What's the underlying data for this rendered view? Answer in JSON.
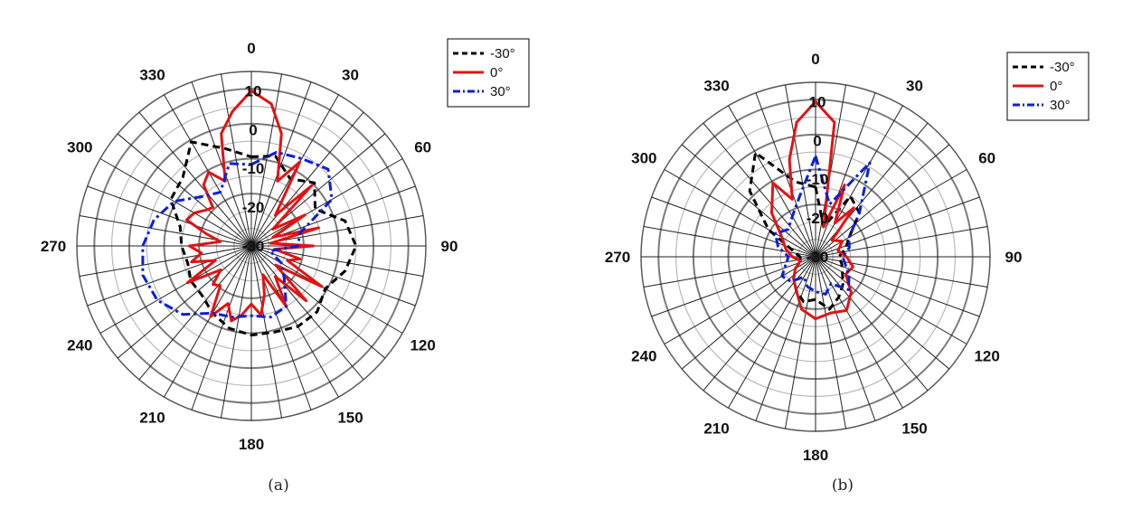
{
  "chart_data": [
    {
      "type": "polar-line",
      "panel_label": "(a)",
      "angle_tick_labels": [
        "0",
        "30",
        "60",
        "90",
        "120",
        "150",
        "180",
        "210",
        "240",
        "270",
        "300",
        "330"
      ],
      "radial_tick_labels": [
        "10",
        "0",
        "-10",
        "-20",
        "-30"
      ],
      "radial_range": [
        -30,
        15
      ],
      "angle_direction": "clockwise",
      "zero_location": "top",
      "legend_placement": "top-right",
      "series": [
        {
          "name": "-30°",
          "color": "#000000",
          "dash": "dashed",
          "points": [
            [
              0,
              -7
            ],
            [
              15,
              -6
            ],
            [
              30,
              -10
            ],
            [
              45,
              -7
            ],
            [
              60,
              -11
            ],
            [
              75,
              -5
            ],
            [
              90,
              -3
            ],
            [
              105,
              -5
            ],
            [
              120,
              -8
            ],
            [
              135,
              -6
            ],
            [
              150,
              -6
            ],
            [
              165,
              -7
            ],
            [
              180,
              -7
            ],
            [
              195,
              -8
            ],
            [
              210,
              -10
            ],
            [
              225,
              -12
            ],
            [
              240,
              -12
            ],
            [
              255,
              -13
            ],
            [
              270,
              -12
            ],
            [
              285,
              -11
            ],
            [
              300,
              -6
            ],
            [
              315,
              -5
            ],
            [
              330,
              1
            ],
            [
              345,
              -4
            ],
            [
              360,
              -7
            ]
          ]
        },
        {
          "name": "0°",
          "color": "#e01414",
          "dash": "solid",
          "points": [
            [
              0,
              10
            ],
            [
              8,
              7
            ],
            [
              15,
              0
            ],
            [
              22,
              -12
            ],
            [
              30,
              -5
            ],
            [
              38,
              -20
            ],
            [
              45,
              -8
            ],
            [
              52,
              -23
            ],
            [
              60,
              -14
            ],
            [
              68,
              -24
            ],
            [
              75,
              -12
            ],
            [
              82,
              -25
            ],
            [
              90,
              -14
            ],
            [
              98,
              -24
            ],
            [
              105,
              -17
            ],
            [
              112,
              -20
            ],
            [
              120,
              -9
            ],
            [
              128,
              -22
            ],
            [
              135,
              -10
            ],
            [
              142,
              -20
            ],
            [
              150,
              -12
            ],
            [
              158,
              -22
            ],
            [
              165,
              -17
            ],
            [
              172,
              -12
            ],
            [
              180,
              -15
            ],
            [
              188,
              -12
            ],
            [
              195,
              -10
            ],
            [
              202,
              -14
            ],
            [
              210,
              -9
            ],
            [
              218,
              -17
            ],
            [
              225,
              -16
            ],
            [
              232,
              -20
            ],
            [
              240,
              -11
            ],
            [
              248,
              -20
            ],
            [
              255,
              -14
            ],
            [
              262,
              -17
            ],
            [
              270,
              -14
            ],
            [
              278,
              -22
            ],
            [
              285,
              -18
            ],
            [
              292,
              -12
            ],
            [
              300,
              -13
            ],
            [
              308,
              -15
            ],
            [
              315,
              -16
            ],
            [
              322,
              -10
            ],
            [
              330,
              -8
            ],
            [
              338,
              -12
            ],
            [
              345,
              0
            ],
            [
              352,
              5
            ],
            [
              360,
              10
            ]
          ]
        },
        {
          "name": "30°",
          "color": "#0b1fd6",
          "dash": "dashdot",
          "points": [
            [
              0,
              -9
            ],
            [
              15,
              -5
            ],
            [
              30,
              -4
            ],
            [
              45,
              -2
            ],
            [
              60,
              -6
            ],
            [
              75,
              -17
            ],
            [
              90,
              -18
            ],
            [
              105,
              -25
            ],
            [
              120,
              -21
            ],
            [
              135,
              -18
            ],
            [
              150,
              -12
            ],
            [
              165,
              -11
            ],
            [
              180,
              -12
            ],
            [
              195,
              -11
            ],
            [
              210,
              -10
            ],
            [
              225,
              -5
            ],
            [
              240,
              -2
            ],
            [
              255,
              -1
            ],
            [
              270,
              -2
            ],
            [
              285,
              -4
            ],
            [
              300,
              -7
            ],
            [
              315,
              -12
            ],
            [
              330,
              -14
            ],
            [
              345,
              -8
            ],
            [
              360,
              -9
            ]
          ]
        }
      ]
    },
    {
      "type": "polar-line",
      "panel_label": "(b)",
      "angle_tick_labels": [
        "0",
        "30",
        "60",
        "90",
        "120",
        "150",
        "180",
        "210",
        "240",
        "270",
        "300",
        "330"
      ],
      "radial_tick_labels": [
        "10",
        "0",
        "-10",
        "-20",
        "-30"
      ],
      "radial_range": [
        -30,
        15
      ],
      "angle_direction": "clockwise",
      "zero_location": "top",
      "legend_placement": "top-right",
      "series": [
        {
          "name": "-30°",
          "color": "#000000",
          "dash": "dashed",
          "points": [
            [
              0,
              -12
            ],
            [
              15,
              -22
            ],
            [
              30,
              -12
            ],
            [
              45,
              -14
            ],
            [
              60,
              -20
            ],
            [
              75,
              -22
            ],
            [
              90,
              -24
            ],
            [
              105,
              -23
            ],
            [
              120,
              -22
            ],
            [
              135,
              -20
            ],
            [
              150,
              -18
            ],
            [
              165,
              -16
            ],
            [
              180,
              -19
            ],
            [
              195,
              -18
            ],
            [
              210,
              -20
            ],
            [
              225,
              -22
            ],
            [
              240,
              -24
            ],
            [
              255,
              -26
            ],
            [
              270,
              -26
            ],
            [
              285,
              -24
            ],
            [
              300,
              -16
            ],
            [
              315,
              -6
            ],
            [
              330,
              1
            ],
            [
              345,
              -10
            ],
            [
              360,
              -12
            ]
          ]
        },
        {
          "name": "0°",
          "color": "#e01414",
          "dash": "solid",
          "points": [
            [
              0,
              10
            ],
            [
              8,
              5
            ],
            [
              15,
              -22
            ],
            [
              22,
              -10
            ],
            [
              30,
              -20
            ],
            [
              38,
              -14
            ],
            [
              45,
              -24
            ],
            [
              60,
              -22
            ],
            [
              75,
              -24
            ],
            [
              90,
              -22
            ],
            [
              105,
              -20
            ],
            [
              120,
              -21
            ],
            [
              135,
              -17
            ],
            [
              150,
              -14
            ],
            [
              165,
              -15
            ],
            [
              180,
              -14
            ],
            [
              195,
              -16
            ],
            [
              210,
              -20
            ],
            [
              225,
              -22
            ],
            [
              240,
              -24
            ],
            [
              255,
              -26
            ],
            [
              270,
              -24
            ],
            [
              285,
              -22
            ],
            [
              300,
              -20
            ],
            [
              315,
              -14
            ],
            [
              330,
              -8
            ],
            [
              338,
              -14
            ],
            [
              345,
              -4
            ],
            [
              352,
              5
            ],
            [
              360,
              10
            ]
          ]
        },
        {
          "name": "30°",
          "color": "#0b1fd6",
          "dash": "dashdot",
          "points": [
            [
              0,
              -4
            ],
            [
              15,
              -16
            ],
            [
              30,
              -2
            ],
            [
              45,
              -14
            ],
            [
              60,
              -20
            ],
            [
              75,
              -21
            ],
            [
              90,
              -23
            ],
            [
              105,
              -22
            ],
            [
              120,
              -20
            ],
            [
              135,
              -18
            ],
            [
              150,
              -22
            ],
            [
              165,
              -20
            ],
            [
              180,
              -21
            ],
            [
              195,
              -22
            ],
            [
              210,
              -24
            ],
            [
              225,
              -21
            ],
            [
              240,
              -20
            ],
            [
              255,
              -22
            ],
            [
              270,
              -23
            ],
            [
              285,
              -20
            ],
            [
              300,
              -18
            ],
            [
              315,
              -20
            ],
            [
              330,
              -18
            ],
            [
              345,
              -14
            ],
            [
              360,
              -4
            ]
          ]
        }
      ]
    }
  ]
}
